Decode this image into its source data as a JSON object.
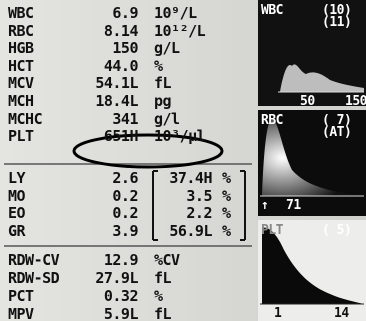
{
  "results": [
    {
      "label": "WBC",
      "value": "6.9",
      "unit": "10⁹/L"
    },
    {
      "label": "RBC",
      "value": "8.14",
      "unit": "10¹²/L"
    },
    {
      "label": "HGB",
      "value": "150",
      "unit": "g/L"
    },
    {
      "label": "HCT",
      "value": "44.0",
      "unit": "%"
    },
    {
      "label": "MCV",
      "value": "54.1L",
      "unit": "fL"
    },
    {
      "label": "MCH",
      "value": "18.4L",
      "unit": "pg"
    },
    {
      "label": "MCHC",
      "value": "341",
      "unit": "g/l"
    },
    {
      "label": "PLT",
      "value": "651H",
      "unit": "10³/μl"
    }
  ],
  "differential": [
    {
      "label": "LY",
      "value": "2.6",
      "percent": "37.4H",
      "unit": "%"
    },
    {
      "label": "MO",
      "value": "0.2",
      "percent": "3.5",
      "unit": "%"
    },
    {
      "label": "EO",
      "value": "0.2",
      "percent": "2.2",
      "unit": "%"
    },
    {
      "label": "GR",
      "value": "3.9",
      "percent": "56.9L",
      "unit": "%"
    }
  ],
  "indices": [
    {
      "label": "RDW-CV",
      "value": "12.9",
      "unit": "%CV"
    },
    {
      "label": "RDW-SD",
      "value": "27.9L",
      "unit": "fL"
    },
    {
      "label": "PCT",
      "value": "0.32",
      "unit": "%"
    },
    {
      "label": "MPV",
      "value": "5.9L",
      "unit": "fL"
    }
  ],
  "histograms": {
    "wbc": {
      "title": "WBC",
      "flags": [
        "(10)",
        "(11)"
      ],
      "axis": [
        "50",
        "150"
      ]
    },
    "rbc": {
      "title": "RBC",
      "flags": [
        "( 7)",
        "(AT)"
      ],
      "axis": [
        "↑",
        "71"
      ]
    },
    "plt": {
      "title": "PLT",
      "flags": [
        "( 5)"
      ],
      "axis": [
        "1",
        "14"
      ]
    }
  }
}
